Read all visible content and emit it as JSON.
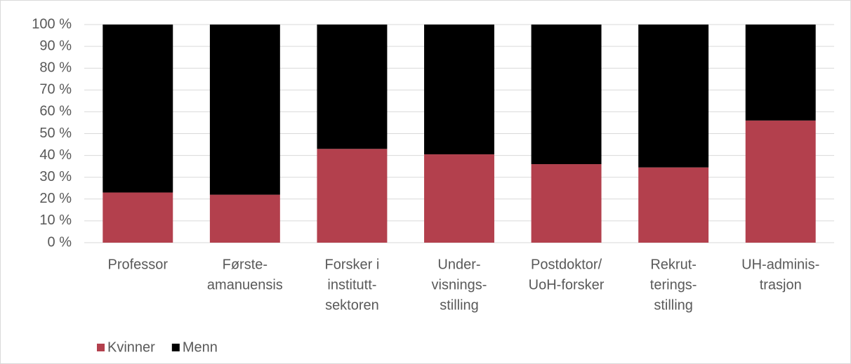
{
  "chart_data": {
    "type": "stacked_bar",
    "categories": [
      [
        "Professor"
      ],
      [
        "Første-",
        "amanuensis"
      ],
      [
        "Forsker i",
        "institutt-",
        "sektoren"
      ],
      [
        "Under-",
        "visnings-",
        "stilling"
      ],
      [
        "Postdoktor/",
        "UoH-forsker"
      ],
      [
        "Rekrut-",
        "terings-",
        "stilling"
      ],
      [
        "UH-adminis-",
        "trasjon"
      ]
    ],
    "series": [
      {
        "name": "Kvinner",
        "color": "#b3404d",
        "values": [
          23,
          22,
          43,
          40.5,
          36,
          34.5,
          56
        ]
      },
      {
        "name": "Menn",
        "color": "#000000",
        "values": [
          77,
          78,
          57,
          59.5,
          64,
          65.5,
          44
        ]
      }
    ],
    "ylim": [
      0,
      100
    ],
    "yticks": [
      {
        "value": 0,
        "label": "0 %"
      },
      {
        "value": 10,
        "label": "10 %"
      },
      {
        "value": 20,
        "label": "20 %"
      },
      {
        "value": 30,
        "label": "30 %"
      },
      {
        "value": 40,
        "label": "40 %"
      },
      {
        "value": 50,
        "label": "50 %"
      },
      {
        "value": 60,
        "label": "60 %"
      },
      {
        "value": 70,
        "label": "70 %"
      },
      {
        "value": 80,
        "label": "80 %"
      },
      {
        "value": 90,
        "label": "90 %"
      },
      {
        "value": 100,
        "label": "100 %"
      }
    ],
    "grid": true,
    "legend": "bottom-left"
  }
}
